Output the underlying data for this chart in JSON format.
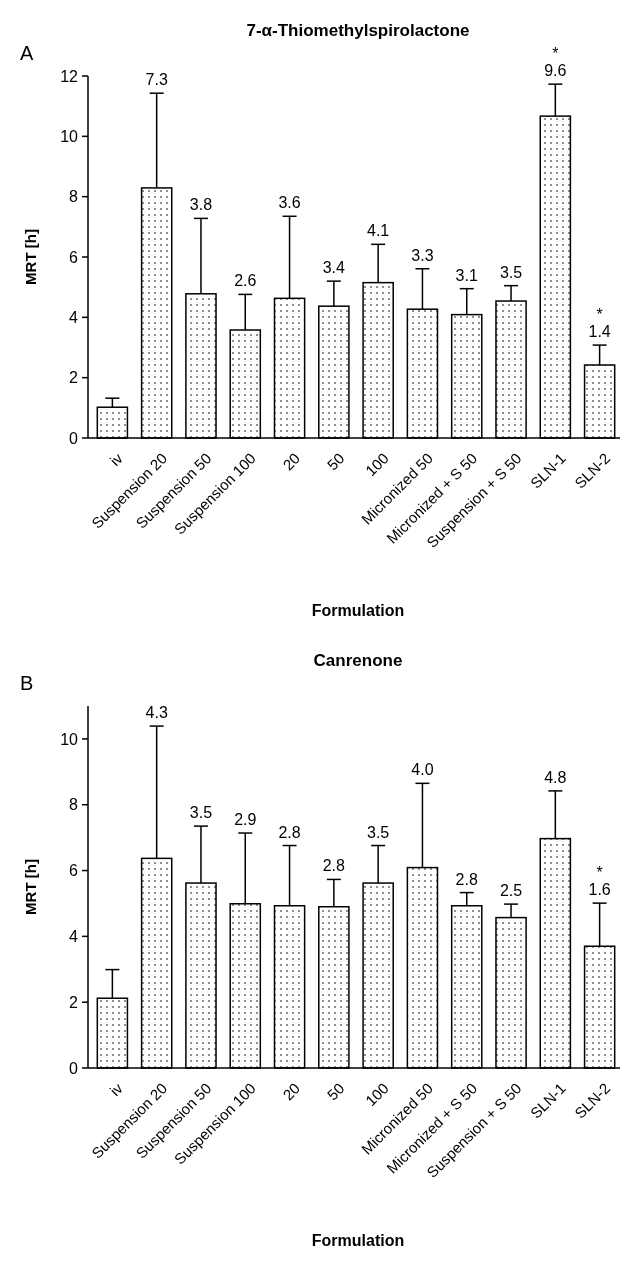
{
  "chart_data": [
    {
      "type": "bar",
      "title": "7-α-Thiomethylspirolactone",
      "xlabel": "Formulation",
      "ylabel": "MRT [h]",
      "categories": [
        "iv",
        "Suspension 20",
        "Suspension 50",
        "Suspension 100",
        "20",
        "50",
        "100",
        "Micronized 50",
        "Micronized + S 50",
        "Suspension + S 50",
        "SLN-1",
        "SLN-2"
      ],
      "values": [
        1.02,
        8.29,
        4.78,
        3.58,
        4.63,
        4.37,
        5.15,
        4.27,
        4.09,
        4.54,
        10.67,
        2.42
      ],
      "errors": [
        [
          1.02,
          1.32
        ],
        [
          8.29,
          11.43
        ],
        [
          4.78,
          7.28
        ],
        [
          3.58,
          4.76
        ],
        [
          4.63,
          7.35
        ],
        [
          4.37,
          5.2
        ],
        [
          5.15,
          6.42
        ],
        [
          4.27,
          5.61
        ],
        [
          4.09,
          4.95
        ],
        [
          4.54,
          5.05
        ],
        [
          10.67,
          11.73
        ],
        [
          2.42,
          3.08
        ]
      ],
      "color": "#000000",
      "ylim": [
        0,
        12
      ],
      "yticks": [
        0,
        2,
        4,
        6,
        8,
        10,
        12
      ],
      "annotations": [
        "A",
        {
          "text": "7.3",
          "x": "Suspension 20",
          "y": 11.43
        },
        {
          "text": "3.8",
          "x": "Suspension 50",
          "y": 7.28
        },
        {
          "text": "2.6",
          "x": "Suspension 100",
          "y": 4.76
        },
        {
          "text": "3.6",
          "x": "20",
          "y": 7.35
        },
        {
          "text": "3.4",
          "x": "50",
          "y": 5.2
        },
        {
          "text": "4.1",
          "x": "100",
          "y": 6.42
        },
        {
          "text": "3.3",
          "x": "Micronized 50",
          "y": 5.61
        },
        {
          "text": "3.1",
          "x": "Micronized + S 50",
          "y": 4.95
        },
        {
          "text": "3.5",
          "x": "Suspension + S 50",
          "y": 5.05
        },
        {
          "text": "9.6",
          "x": "SLN-1",
          "y": 11.73
        },
        {
          "text": "1.4",
          "x": "SLN-2",
          "y": 3.08
        },
        {
          "text": "*",
          "x": "SLN-1",
          "y": 11.73
        },
        {
          "text": "*",
          "x": "SLN-2",
          "y": 3.08
        }
      ]
    },
    {
      "type": "bar",
      "title": "Canrenone",
      "xlabel": "Formulation",
      "ylabel": "MRT [h]",
      "categories": [
        "iv",
        "Suspension 20",
        "Suspension 50",
        "Suspension 100",
        "20",
        "50",
        "100",
        "Micronized 50",
        "Micronized + S 50",
        "Suspension + S 50",
        "SLN-1",
        "SLN-2"
      ],
      "values": [
        2.12,
        6.37,
        5.62,
        4.99,
        4.93,
        4.9,
        5.62,
        6.09,
        4.93,
        4.57,
        6.97,
        3.7
      ],
      "errors": [
        [
          2.12,
          2.99
        ],
        [
          6.37,
          10.39
        ],
        [
          5.62,
          7.35
        ],
        [
          4.99,
          7.14
        ],
        [
          4.93,
          6.76
        ],
        [
          4.9,
          5.73
        ],
        [
          5.62,
          6.76
        ],
        [
          6.09,
          8.65
        ],
        [
          4.93,
          5.33
        ],
        [
          4.57,
          4.98
        ],
        [
          6.97,
          8.42
        ],
        [
          3.7,
          5.01
        ]
      ],
      "color": "#000000",
      "ylim": [
        0,
        11
      ],
      "yticks": [
        0,
        2,
        4,
        6,
        8,
        10
      ],
      "annotations": [
        "B",
        {
          "text": "4.3",
          "x": "Suspension 20",
          "y": 10.39
        },
        {
          "text": "3.5",
          "x": "Suspension 50",
          "y": 7.35
        },
        {
          "text": "2.9",
          "x": "Suspension 100",
          "y": 7.14
        },
        {
          "text": "2.8",
          "x": "20",
          "y": 6.76
        },
        {
          "text": "2.8",
          "x": "50",
          "y": 5.73
        },
        {
          "text": "3.5",
          "x": "100",
          "y": 6.76
        },
        {
          "text": "4.0",
          "x": "Micronized 50",
          "y": 8.65
        },
        {
          "text": "2.8",
          "x": "Micronized + S 50",
          "y": 5.33
        },
        {
          "text": "2.5",
          "x": "Suspension + S 50",
          "y": 4.98
        },
        {
          "text": "4.8",
          "x": "SLN-1",
          "y": 8.42
        },
        {
          "text": "1.6",
          "x": "SLN-2",
          "y": 5.01
        },
        {
          "text": "*",
          "x": "SLN-2",
          "y": 5.01
        }
      ]
    }
  ]
}
